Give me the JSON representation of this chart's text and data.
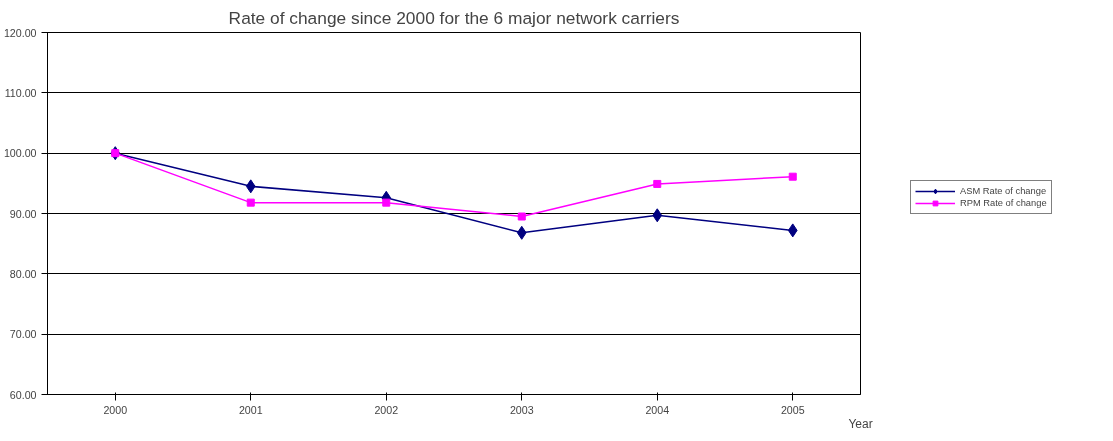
{
  "chart_data": {
    "type": "line",
    "title": "Rate of change since 2000 for the 6 major network carriers",
    "xlabel": "Year",
    "categories": [
      "2000",
      "2001",
      "2002",
      "2003",
      "2004",
      "2005"
    ],
    "series": [
      {
        "name": "ASM Rate of change",
        "color": "#000080",
        "marker": "diamond",
        "values": [
          100.0,
          94.5,
          92.6,
          86.8,
          89.7,
          87.2
        ]
      },
      {
        "name": "RPM Rate of change",
        "color": "#ff00ff",
        "marker": "square",
        "values": [
          100.0,
          91.8,
          91.8,
          89.5,
          94.9,
          96.1
        ]
      }
    ],
    "ylim": [
      60,
      120
    ],
    "yticks": [
      {
        "value": 60,
        "label": "60.00"
      },
      {
        "value": 70,
        "label": "70.00"
      },
      {
        "value": 80,
        "label": "80.00"
      },
      {
        "value": 90,
        "label": "90.00"
      },
      {
        "value": 100,
        "label": "100.00"
      },
      {
        "value": 110,
        "label": "110.00"
      },
      {
        "value": 120,
        "label": "120.00"
      }
    ],
    "grid": "y",
    "legend": "right",
    "line_style": "solid"
  }
}
